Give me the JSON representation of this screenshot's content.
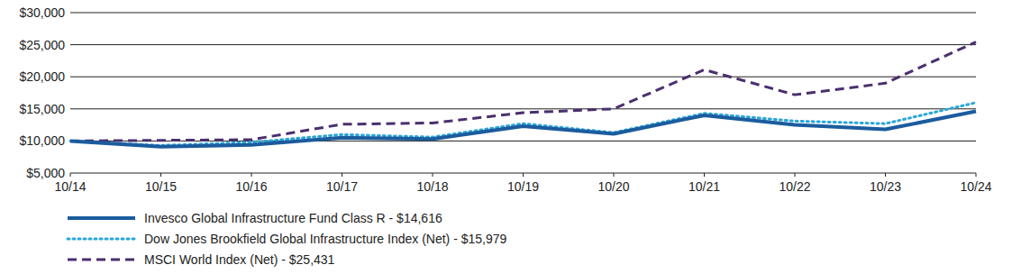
{
  "chart_data": {
    "type": "line",
    "categories": [
      "10/14",
      "10/15",
      "10/16",
      "10/17",
      "10/18",
      "10/19",
      "10/20",
      "10/21",
      "10/22",
      "10/23",
      "10/24"
    ],
    "series": [
      {
        "name": "Invesco Global Infrastructure Fund Class R - $14,616",
        "color": "#1b5c9e",
        "line_style": "solid",
        "values": [
          10000,
          9100,
          9400,
          10500,
          10300,
          12300,
          11100,
          14000,
          12500,
          11800,
          14616
        ]
      },
      {
        "name": "Dow Jones Brookfield Global Infrastructure Index (Net) - $15,979",
        "color": "#2ba6d9",
        "line_style": "dotted",
        "values": [
          10000,
          9300,
          9800,
          11000,
          10600,
          12700,
          11300,
          14300,
          13100,
          12700,
          15979
        ]
      },
      {
        "name": "MSCI World Index (Net) - $25,431",
        "color": "#4a2f6e",
        "line_style": "dashed",
        "values": [
          10000,
          10100,
          10200,
          12600,
          12800,
          14400,
          15000,
          21100,
          17200,
          19000,
          25431
        ]
      }
    ],
    "ylim": [
      5000,
      30000
    ],
    "yticks": [
      {
        "value": 5000,
        "label": "$5,000"
      },
      {
        "value": 10000,
        "label": "$10,000"
      },
      {
        "value": 15000,
        "label": "$15,000"
      },
      {
        "value": 20000,
        "label": "$20,000"
      },
      {
        "value": 25000,
        "label": "$25,000"
      },
      {
        "value": 30000,
        "label": "$30,000"
      }
    ],
    "grid": true,
    "legend": "bottom"
  }
}
